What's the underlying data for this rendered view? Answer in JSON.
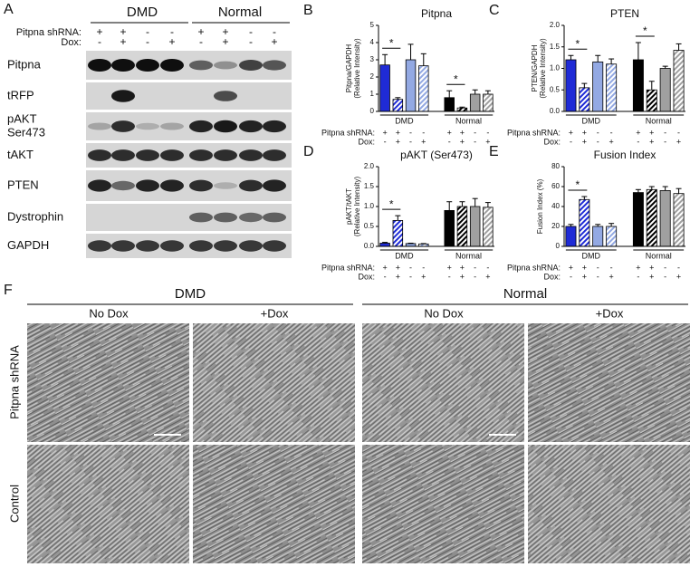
{
  "blot": {
    "panel": "A",
    "groups": [
      "DMD",
      "Normal"
    ],
    "conditions": [
      {
        "label": "Pitpna shRNA:",
        "values": [
          "+",
          "+",
          "-",
          "-",
          "+",
          "+",
          "-",
          "-"
        ]
      },
      {
        "label": "Dox:",
        "values": [
          "-",
          "+",
          "-",
          "+",
          "-",
          "+",
          "-",
          "+"
        ]
      }
    ],
    "bands": [
      [
        "Pitpna"
      ],
      [
        "tRFP"
      ],
      [
        "pAKT",
        "Ser473"
      ],
      [
        "tAKT"
      ],
      [
        "PTEN"
      ],
      [
        "Dystrophin"
      ],
      [
        "GAPDH"
      ]
    ]
  },
  "chart_data": [
    {
      "type": "bar",
      "panel": "B",
      "title": "Pitpna",
      "ylabel": [
        "Pitpna/GAPDH",
        "(Relative Intensity)"
      ],
      "groups": [
        "DMD",
        "Normal"
      ],
      "conditions": [
        {
          "label": "Pitpna shRNA:",
          "values": [
            "+",
            "+",
            "-",
            "-",
            "+",
            "+",
            "-",
            "-"
          ]
        },
        {
          "label": "Dox:",
          "values": [
            "-",
            "+",
            "-",
            "+",
            "-",
            "+",
            "-",
            "+"
          ]
        }
      ],
      "values": [
        2.7,
        0.7,
        3.0,
        2.65,
        0.8,
        0.2,
        1.0,
        1.0
      ],
      "errors": [
        0.6,
        0.1,
        0.9,
        0.7,
        0.4,
        0.05,
        0.25,
        0.2
      ],
      "colors": [
        "#1f2bd6",
        "#1f2bd6",
        "#93a9e3",
        "#93a9e3",
        "#000000",
        "#000000",
        "#a0a0a0",
        "#a0a0a0"
      ],
      "hatched": [
        false,
        true,
        false,
        true,
        false,
        true,
        false,
        true
      ],
      "significance": [
        {
          "label": "*",
          "bars": [
            0,
            1
          ]
        },
        {
          "label": "*",
          "bars": [
            4,
            5
          ]
        }
      ],
      "ylim": [
        0,
        5
      ],
      "yticks": [
        0,
        1,
        2,
        3,
        4,
        5
      ]
    },
    {
      "type": "bar",
      "panel": "C",
      "title": "PTEN",
      "ylabel": [
        "PTEN/GAPDH",
        "(Relative Intensity)"
      ],
      "groups": [
        "DMD",
        "Normal"
      ],
      "conditions": [
        {
          "label": "Pitpna shRNA:",
          "values": [
            "+",
            "+",
            "-",
            "-",
            "+",
            "+",
            "-",
            "-"
          ]
        },
        {
          "label": "Dox:",
          "values": [
            "-",
            "+",
            "-",
            "+",
            "-",
            "+",
            "-",
            "+"
          ]
        }
      ],
      "values": [
        1.2,
        0.55,
        1.15,
        1.1,
        1.2,
        0.5,
        1.0,
        1.42
      ],
      "errors": [
        0.1,
        0.1,
        0.15,
        0.12,
        0.4,
        0.2,
        0.05,
        0.15
      ],
      "colors": [
        "#1f2bd6",
        "#1f2bd6",
        "#93a9e3",
        "#93a9e3",
        "#000000",
        "#000000",
        "#a0a0a0",
        "#a0a0a0"
      ],
      "hatched": [
        false,
        true,
        false,
        true,
        false,
        true,
        false,
        true
      ],
      "significance": [
        {
          "label": "*",
          "bars": [
            0,
            1
          ]
        },
        {
          "label": "*",
          "bars": [
            4,
            5
          ]
        }
      ],
      "ylim": [
        0,
        2
      ],
      "yticks": [
        {
          "value": 0,
          "label": "0.0"
        },
        {
          "value": 0.5,
          "label": "0.5"
        },
        {
          "value": 1,
          "label": "1.0"
        },
        {
          "value": 1.5,
          "label": "1.5"
        },
        {
          "value": 2,
          "label": "2.0"
        }
      ]
    },
    {
      "type": "bar",
      "panel": "D",
      "title": "pAKT (Ser473)",
      "ylabel": [
        "pAKT/tAKT",
        "(Relative Intensity)"
      ],
      "groups": [
        "DMD",
        "Normal"
      ],
      "conditions": [
        {
          "label": "Pitpna shRNA:",
          "values": [
            "+",
            "+",
            "-",
            "-",
            "+",
            "+",
            "-",
            "-"
          ]
        },
        {
          "label": "Dox:",
          "values": [
            "-",
            "+",
            "-",
            "+",
            "-",
            "+",
            "-",
            "+"
          ]
        }
      ],
      "values": [
        0.08,
        0.65,
        0.07,
        0.06,
        0.9,
        1.0,
        1.0,
        0.98
      ],
      "errors": [
        0.02,
        0.12,
        0.01,
        0.01,
        0.22,
        0.12,
        0.2,
        0.12
      ],
      "colors": [
        "#1f2bd6",
        "#1f2bd6",
        "#93a9e3",
        "#93a9e3",
        "#000000",
        "#000000",
        "#a0a0a0",
        "#a0a0a0"
      ],
      "hatched": [
        false,
        true,
        false,
        true,
        false,
        true,
        false,
        true
      ],
      "significance": [
        {
          "label": "*",
          "bars": [
            0,
            1
          ]
        }
      ],
      "ylim": [
        0,
        2
      ],
      "yticks": [
        {
          "value": 0,
          "label": "0.0"
        },
        {
          "value": 0.5,
          "label": "0.5"
        },
        {
          "value": 1,
          "label": "1.0"
        },
        {
          "value": 1.5,
          "label": "1.5"
        },
        {
          "value": 2,
          "label": "2.0"
        }
      ]
    },
    {
      "type": "bar",
      "panel": "E",
      "title": "Fusion Index",
      "ylabel": [
        "Fusion Index (%)"
      ],
      "groups": [
        "DMD",
        "Normal"
      ],
      "conditions": [
        {
          "label": "Pitpna shRNA:",
          "values": [
            "+",
            "+",
            "-",
            "-",
            "+",
            "+",
            "-",
            "-"
          ]
        },
        {
          "label": "Dox:",
          "values": [
            "-",
            "+",
            "-",
            "+",
            "-",
            "+",
            "-",
            "+"
          ]
        }
      ],
      "values": [
        20,
        47,
        20,
        20,
        54,
        57,
        56,
        53
      ],
      "errors": [
        2,
        3,
        2,
        3,
        3,
        3,
        4,
        5
      ],
      "colors": [
        "#1f2bd6",
        "#1f2bd6",
        "#93a9e3",
        "#93a9e3",
        "#000000",
        "#000000",
        "#a0a0a0",
        "#a0a0a0"
      ],
      "hatched": [
        false,
        true,
        false,
        true,
        false,
        true,
        false,
        true
      ],
      "significance": [
        {
          "label": "*",
          "bars": [
            0,
            1
          ]
        }
      ],
      "ylim": [
        0,
        80
      ],
      "yticks": [
        0,
        20,
        40,
        60,
        80
      ]
    }
  ],
  "micrographs": {
    "panel": "F",
    "groups": [
      {
        "label": "DMD",
        "columns": [
          "No Dox",
          "+Dox"
        ]
      },
      {
        "label": "Normal",
        "columns": [
          "No Dox",
          "+Dox"
        ]
      }
    ],
    "rows": [
      "Pitpna shRNA",
      "Control"
    ]
  }
}
